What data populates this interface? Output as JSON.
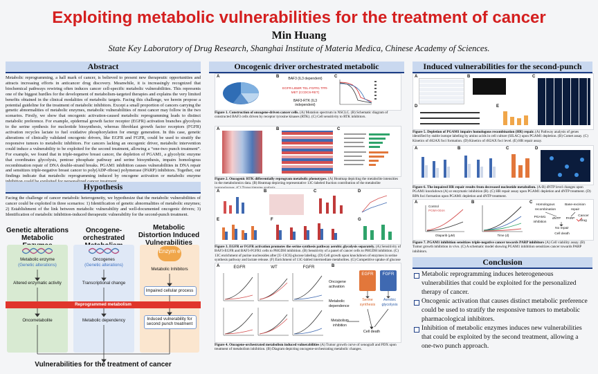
{
  "title": "Exploiting metabolic vulnerabilities for the treatment of cancer",
  "author": "Min Huang",
  "affiliation": "State Key Laboratory of Drug Research, Shanghai Institute of Materia Medica, Chinese Academy of Sciences.",
  "sections": {
    "abstract": "Abstract",
    "hypothesis": "Hypothesis",
    "oncogenic": "Oncogenic driver orchestrated metabolic vulnerabilities",
    "second_punch": "Induced vulnerabilities for the second-punch treatment",
    "conclusion": "Conclusion"
  },
  "abstract_text": "Metabolic reprogramming, a hall mark of cancer, is believed to present new therapeutic opportunities and attracts increasing efforts in anticancer drug discovery. Meanwhile, it is increasingly recognized that biochemical pathways rewiring often induces cancer cell-specific metabolic vulnerabilities. This represents one of the biggest hurdles for the development of metabolism-targeted therapies and explains the very limited benefits obtained in the clinical modalities of metabolic targets. Facing this challenge, we herein propose a potential guideline for the treatment of metabolic inhibitors. Except a small proportion of cancers carrying the genetic abnormalities of metabolic enzymes, metabolic vulnerabilities of most cancer may follow in the two scenarios. Firstly, we show that oncogenic activation-caused metabolic reprogramming leads to distinct metabolic preference. For example, epidermal growth factor receptor (EGFR) activation branches glycolysis to the serine synthesis for nucleotide biosynthesis, whereas fibroblast growth factor receptors (FGFR) activation recycles lactate to fuel oxidative phosphorylation for energy generation. In this case, genetic alterations of clinically validated oncogenic drivers, like EGFR and FGFR, could be used to stratify the responsive tumors to metabolic inhibitors. For cancers lacking an oncogenic driver, metabolic intervention could induce a vulnerability to be exploited for the second treatment, allowing a “one-two punch treatment”. For example, we found that in triple-negative breast cancer, the depletion of PGAM1, a glycolytic enzyme that coordinates glycolysis, pentose phosphate pathway and serine biosynthesis, impairs homologous recombination repair of DNA double-strand breaks. PGAM1 inhibition causes vulnerabilities in DNA repair and sensitizes triple-negative breast cancer to poly(ADP-ribose) polymerase (PARP) inhibitors. Together, our findings indicate that metabolic reprogramming induced by oncogene activation or metabolic enzyme inhibition could be exploited for personalized cancer treatment.",
  "hypothesis_text": "Facing the challenge of cancer metabolic heterogeneity, we hypothesize that the metabolic vulnerabilities of cancer could be exploited in three scenarios: 1) Identification of genetic abnormalities of metabolic enzymes; 2) Establishment of the link between metabolic vulnerability and well-documented oncogenic drivers; 3) Identification of metabolic inhibition-induced therapeutic vulnerability for the second-punch treatment.",
  "diagram": {
    "col1_title": "Genetic alterations Metabolic Enzymes",
    "col2_title": "Oncogene-orchestrated Metabolism",
    "col3_title": "Metabolic Distortion Induced Vulnerabilities",
    "col1_top": "Metabolic enzyme",
    "col1_top_sub": "(Genetic alterations)",
    "col1_mid": "Altered enzymatic activity",
    "col1_bot": "Oncometabolite",
    "col2_top": "Oncogenes",
    "col2_top_sub": "(Genetic alterations)",
    "col2_mid": "Transcriptional change",
    "col2_bot": "Metabolic dependency",
    "col3_enzyme": "Enzym e",
    "col3_top": "Metabolic Inhibitors",
    "col3_mid": "Impaired cellular process",
    "col3_bot": "Induced vulnerability for second punch treatment",
    "banner": "Reprogrammed metabolism",
    "footer": "Vulnerabilities for the treatment of cancer"
  },
  "captions": {
    "fig1": [
      "Figure 1. Construction of oncogene-driven cancer cells.",
      " (A) Mutation spectrum in NSCLC. (B) Schematic diagram of constructed BAF3 cells driven by receptor tyrosine kinases (RTK). (C) Cell sensitivity to RTK inhibitors."
    ],
    "fig2": [
      "Figure 2. Oncogenic RTK differentially reprogram metabolic phenotypes.",
      " (A) Heatmap depicting the metabolite intensities in the metabolomics data. (B) Heatmap depicting representative 13C-labeled fraction contribution of the metabolite isotopologues. (C) Transcriptome analysis."
    ],
    "fig3": [
      "Figure 3. EGFR or FGFR activation promotes the serine synthesis pathway aerobic glycolysis separately.",
      " (A) Sensitivity of BAF3-EGFR and BAF3-FGFR1 cells to PHGDH inhibition. (B) Sensitivity of a panel of cancer cells to PHGDH inhibition. (C) 13C enrichment of purine nucleosides after [U-13C6]-glucose labeling. (D) Cell growth upon knockdown of enzymes in serine synthesis pathway and lactate release. (F) Enrichment of 13C-labled intermediate metabolites. (G) Competitive uptake of glucose and lactate."
    ],
    "fig4": [
      "Figure 4. Oncogene-orchestrated metabolism induced vulnerabilities",
      " (A) Tumor growth curve of xenograft and PDX upon treatment of metabolism inhibition. (B) Diagram depicting oncogene-orchestrating metabolic changes."
    ],
    "fig5": [
      "Figure 5. Depletion of PGAM1 impairs homologous recombination (HR) repair.",
      " (A) Pathway analysis of genes identified by stable isotope labeling by amino acids in cell culture (SILAC) upon PGAM1 depletion. (B) Comet assay. (C) Kinetics of rH2AX foci formation. (D) Kinetics of rH2AX foci level. (E) HR repair assay."
    ],
    "fig6": [
      "Figure 6. The impaired HR repair results from decreased nucleotide metabolism.",
      " (A-B) dNTP level changes upon PGAM1 knockdown (A) or enzymatic inhibition (B). (C) HR repair assay upon PGAM1 depletion and dNTP treatment. (D) RPA foci formation upon PGAM1 depletion and dNTP treatment."
    ],
    "fig7": [
      "Figure 7. PGAM1 inhibition sensitizes triple-negative cancer towards PARP inhibitors",
      " (A) Cell viability assay. (B) Tumor growth inhibition in vivo. (C) A schematic model showing PGAM1 inhibition sensitizes cancer towards PARP inhibitors."
    ]
  },
  "figure_labels": {
    "fig1_baf3": "BAF3 (IL3 dependent)",
    "fig1_rtk": "EGFR-L858R TEL-FGFR1 TPR-MET (CCDC6-RET)",
    "fig1_baf3_rtk": "BAF3-RTK (IL3 independent)",
    "fig4_egfr": "EGFR",
    "fig4_wt": "WT",
    "fig4_fgfr": "FGFR",
    "fig4_oncogene": "Oncogene activation",
    "fig4_dependence": "Metabolic dependence",
    "fig4_serine": "Serine synthesis",
    "fig4_glycolysis": "Aerobic glycolysis",
    "fig4_inhibition": "Metabolism inhibition",
    "fig4_celldeath": "Cell death",
    "fig7_hr": "Homologous recombination",
    "fig7_ber": "Base-excision repair",
    "fig7_pgam1": "PGAM1 inhibition",
    "fig7_dntp": "dNTP",
    "fig7_parp": "PARP",
    "fig7_drug": "Cancer drug",
    "fig7_norepair": "No repair",
    "fig7_celldeath": "Cell death",
    "fig7_xaxis": "Olaparib (μM)",
    "fig7_yaxis": "% Inhibition",
    "fig7_days": "Time (d)",
    "fig7_legend": [
      "Control",
      "PGMI-004A"
    ]
  },
  "conclusion": [
    "Metabolic reprogramming  induces heterogeneous vulnerabilities that could be exploited for the personalized therapy of cancer.",
    "Oncogenic activation that causes distinct metabolic preference could be used to stratify the responsive tumors to metabolic pharmacological inhibitors.",
    "Inhibition of metabolic enzymes induces new vulnerabilities that could be exploited by the second treatment, allowing a one-two punch approach."
  ],
  "colors": {
    "title": "#d41f1f",
    "header_bg": "#c9d8ef",
    "header_rule": "#1d3e86",
    "banner": "#e0352c",
    "green": "#d8ead2",
    "blue_panel": "#dfe8f6",
    "orange": "#f0a64a"
  }
}
